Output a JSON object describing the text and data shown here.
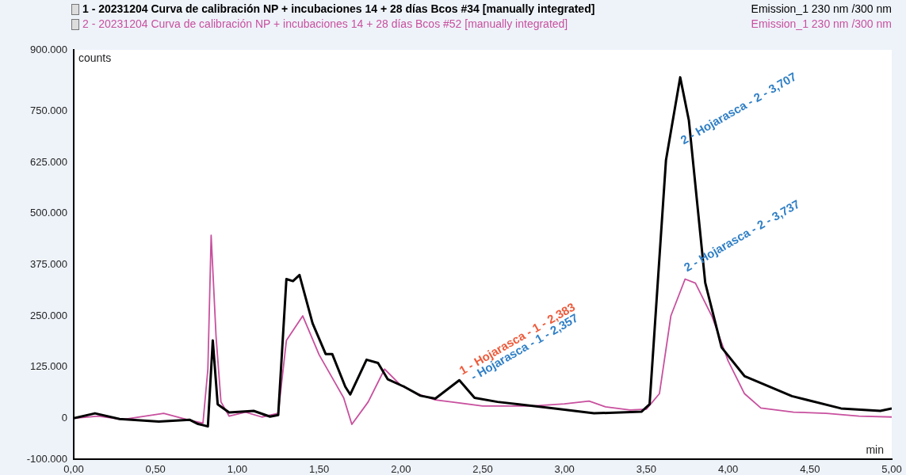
{
  "chart_data": {
    "type": "line",
    "xlabel": "min",
    "ylabel": "counts",
    "legend": "top",
    "marker": "none",
    "line_style": "solid",
    "grid": false,
    "xlim": [
      0,
      5
    ],
    "xticks": [
      {
        "value": 0,
        "label": "0,00"
      },
      {
        "value": 0.5,
        "label": "0,50"
      },
      {
        "value": 1,
        "label": "1,00"
      },
      {
        "value": 1.5,
        "label": "1,50"
      },
      {
        "value": 2,
        "label": "2,00"
      },
      {
        "value": 2.5,
        "label": "2,50"
      },
      {
        "value": 3,
        "label": "3,00"
      },
      {
        "value": 3.5,
        "label": "3,50"
      },
      {
        "value": 4,
        "label": "4,00"
      },
      {
        "value": 4.5,
        "label": "4,50"
      },
      {
        "value": 5,
        "label": "5,00"
      }
    ],
    "ylim": [
      -100000,
      900000
    ],
    "yticks": [
      {
        "value": -100000,
        "label": "-100.000"
      },
      0,
      {
        "value": 125000,
        "label": "125.000"
      },
      {
        "value": 250000,
        "label": "250.000"
      },
      {
        "value": 375000,
        "label": "375.000"
      },
      {
        "value": 500000,
        "label": "500.000"
      },
      {
        "value": 625000,
        "label": "625.000"
      },
      {
        "value": 750000,
        "label": "750.000"
      },
      {
        "value": 900000,
        "label": "900.000"
      }
    ],
    "series": [
      {
        "name": "1 - 20231204 Curva de calibración NP + incubaciones 14 + 28 días Bcos #34 [manually integrated]",
        "color": "#000000",
        "x": [
          0,
          0.13,
          0.28,
          0.52,
          0.71,
          0.76,
          0.82,
          0.85,
          0.88,
          0.95,
          1.1,
          1.2,
          1.25,
          1.3,
          1.34,
          1.38,
          1.46,
          1.54,
          1.58,
          1.66,
          1.69,
          1.79,
          1.86,
          1.92,
          2.02,
          2.12,
          2.21,
          2.357,
          2.45,
          2.59,
          2.94,
          3.18,
          3.47,
          3.52,
          3.62,
          3.707,
          3.76,
          3.86,
          3.96,
          4.1,
          4.39,
          4.69,
          4.93,
          5
        ],
        "values": [
          0,
          12000,
          -2000,
          -8000,
          -4000,
          -14000,
          -20000,
          190000,
          34000,
          14000,
          18000,
          4000,
          8000,
          340000,
          335000,
          350000,
          232000,
          157000,
          157000,
          77000,
          58000,
          143000,
          135000,
          95000,
          77000,
          55000,
          48000,
          93000,
          50000,
          40000,
          24000,
          12000,
          16000,
          34000,
          630000,
          833000,
          728000,
          331000,
          173000,
          103000,
          54000,
          24000,
          18000,
          24000
        ]
      },
      {
        "name": "2 - 20231204 Curva de calibración NP + incubaciones 14 + 28 días Bcos #52 [manually integrated]",
        "color": "#c8509e",
        "x": [
          0,
          0.15,
          0.3,
          0.55,
          0.7,
          0.79,
          0.82,
          0.84,
          0.87,
          0.9,
          0.95,
          1.05,
          1.15,
          1.25,
          1.3,
          1.4,
          1.5,
          1.6,
          1.65,
          1.7,
          1.8,
          1.9,
          2,
          2.1,
          2.21,
          2.5,
          2.8,
          3,
          3.15,
          3.25,
          3.4,
          3.5,
          3.58,
          3.65,
          3.737,
          3.8,
          3.9,
          4,
          4.1,
          4.2,
          4.4,
          4.6,
          4.8,
          5
        ],
        "values": [
          0,
          5000,
          -3000,
          12000,
          -4000,
          -12000,
          120000,
          447000,
          200000,
          40000,
          5000,
          15000,
          3000,
          12000,
          190000,
          250000,
          155000,
          85000,
          50000,
          -15000,
          40000,
          120000,
          80000,
          60000,
          45000,
          30000,
          30000,
          35000,
          42000,
          28000,
          20000,
          22000,
          60000,
          250000,
          340000,
          330000,
          250000,
          140000,
          60000,
          25000,
          15000,
          12000,
          5000,
          3000
        ]
      }
    ],
    "annotations": [
      {
        "text": "1 - Hojarasca - 1 - 2,383",
        "x": 2.383,
        "y": 100000
      },
      {
        "text": "- Hojarasca - 1 - 2,357",
        "x": 2.357,
        "y": 93000
      },
      {
        "text": "2 - Hojarasca - 2 - 3,707",
        "x": 3.707,
        "y": 833000
      },
      {
        "text": "2 - Hojarasca - 2 - 3,737",
        "x": 3.737,
        "y": 340000
      },
      "Emission_1 230 nm /300 nm",
      "Emission_1 230 nm /300 nm"
    ]
  }
}
